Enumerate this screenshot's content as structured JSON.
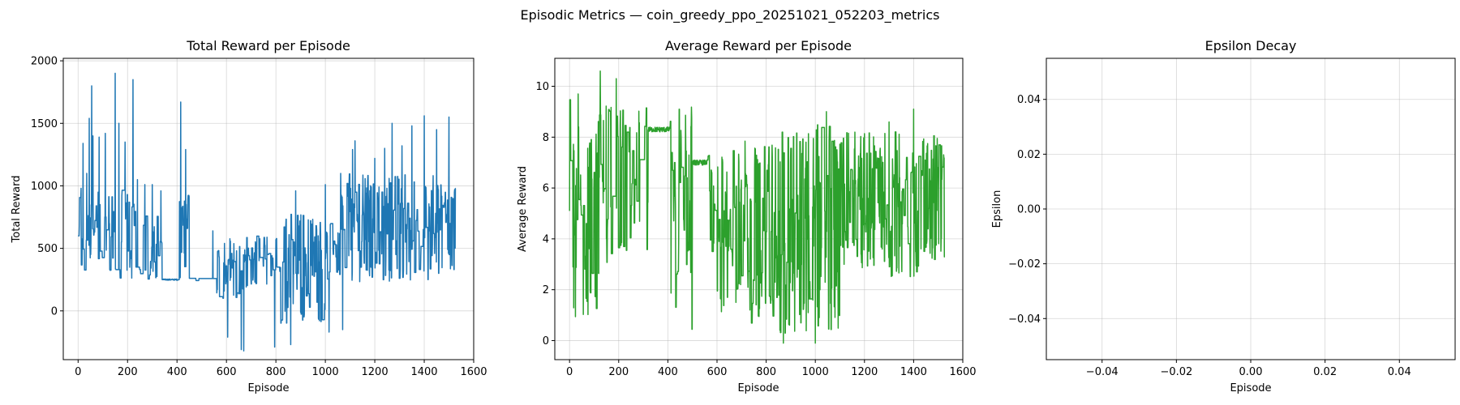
{
  "figure": {
    "suptitle": "Episodic Metrics — coin_greedy_ppo_20251021_052203_metrics"
  },
  "chart_data": [
    {
      "type": "line",
      "title": "Total Reward per Episode",
      "xlabel": "Episode",
      "ylabel": "Total Reward",
      "color": "#1f77b4",
      "xlim": [
        -60,
        1600
      ],
      "ylim": [
        -390,
        2020
      ],
      "grid": true,
      "x_ticks": [
        0,
        200,
        400,
        600,
        800,
        1000,
        1200,
        1400,
        1600
      ],
      "y_ticks": [
        0,
        500,
        1000,
        1500,
        2000
      ],
      "series": [
        {
          "episodes": 1528,
          "segments": [
            {
              "from": 0,
              "to": 30,
              "low": 200,
              "high": 1000,
              "p": 0.3
            },
            {
              "from": 30,
              "to": 230,
              "low": 230,
              "high": 1000,
              "p": 0.3
            },
            {
              "from": 230,
              "to": 340,
              "low": 240,
              "high": 800,
              "p": 0.25
            },
            {
              "from": 340,
              "to": 410,
              "low": 245,
              "high": 255,
              "p": 0.0
            },
            {
              "from": 410,
              "to": 450,
              "low": 210,
              "high": 1000,
              "p": 0.35
            },
            {
              "from": 450,
              "to": 560,
              "low": 235,
              "high": 260,
              "p": 0.05
            },
            {
              "from": 560,
              "to": 700,
              "low": 100,
              "high": 620,
              "p": 0.35
            },
            {
              "from": 700,
              "to": 820,
              "low": 200,
              "high": 600,
              "p": 0.3
            },
            {
              "from": 820,
              "to": 1000,
              "low": -100,
              "high": 800,
              "p": 0.4
            },
            {
              "from": 1000,
              "to": 1060,
              "low": 240,
              "high": 700,
              "p": 0.3
            },
            {
              "from": 1060,
              "to": 1528,
              "low": 230,
              "high": 1100,
              "p": 0.45
            }
          ],
          "spikes": [
            {
              "x": 5,
              "y": 690
            },
            {
              "x": 12,
              "y": 980
            },
            {
              "x": 20,
              "y": 1340
            },
            {
              "x": 35,
              "y": 1100
            },
            {
              "x": 45,
              "y": 1540
            },
            {
              "x": 55,
              "y": 1800
            },
            {
              "x": 60,
              "y": 1400
            },
            {
              "x": 85,
              "y": 1390
            },
            {
              "x": 110,
              "y": 1420
            },
            {
              "x": 150,
              "y": 1900
            },
            {
              "x": 165,
              "y": 1500
            },
            {
              "x": 190,
              "y": 1350
            },
            {
              "x": 222,
              "y": 1850
            },
            {
              "x": 240,
              "y": 1050
            },
            {
              "x": 270,
              "y": 1010
            },
            {
              "x": 300,
              "y": 1010
            },
            {
              "x": 335,
              "y": 960
            },
            {
              "x": 415,
              "y": 1670
            },
            {
              "x": 435,
              "y": 1290
            },
            {
              "x": 545,
              "y": 640
            },
            {
              "x": 605,
              "y": -210
            },
            {
              "x": 660,
              "y": -310
            },
            {
              "x": 670,
              "y": -320
            },
            {
              "x": 795,
              "y": -290
            },
            {
              "x": 860,
              "y": -270
            },
            {
              "x": 880,
              "y": 960
            },
            {
              "x": 1000,
              "y": 1010
            },
            {
              "x": 1015,
              "y": -170
            },
            {
              "x": 1070,
              "y": -150
            },
            {
              "x": 1110,
              "y": 1290
            },
            {
              "x": 1120,
              "y": 1360
            },
            {
              "x": 1200,
              "y": 1220
            },
            {
              "x": 1240,
              "y": 1300
            },
            {
              "x": 1270,
              "y": 1500
            },
            {
              "x": 1310,
              "y": 1320
            },
            {
              "x": 1350,
              "y": 1480
            },
            {
              "x": 1400,
              "y": 1560
            },
            {
              "x": 1450,
              "y": 1450
            },
            {
              "x": 1500,
              "y": 1550
            }
          ]
        }
      ]
    },
    {
      "type": "line",
      "title": "Average Reward per Episode",
      "xlabel": "Episode",
      "ylabel": "Average Reward",
      "color": "#2ca02c",
      "xlim": [
        -60,
        1600
      ],
      "ylim": [
        -0.75,
        11.1
      ],
      "grid": true,
      "x_ticks": [
        0,
        200,
        400,
        600,
        800,
        1000,
        1200,
        1400,
        1600
      ],
      "y_ticks": [
        0,
        2,
        4,
        6,
        8,
        10
      ],
      "series": [
        {
          "episodes": 1528,
          "segments": [
            {
              "from": 0,
              "to": 40,
              "low": 0.5,
              "high": 9.7,
              "p": 0.4
            },
            {
              "from": 40,
              "to": 120,
              "low": 1.0,
              "high": 9.0,
              "p": 0.45
            },
            {
              "from": 120,
              "to": 320,
              "low": 3.0,
              "high": 9.3,
              "p": 0.3
            },
            {
              "from": 320,
              "to": 410,
              "low": 8.2,
              "high": 8.4,
              "p": 0.0
            },
            {
              "from": 410,
              "to": 500,
              "low": 0.1,
              "high": 9.5,
              "p": 0.4
            },
            {
              "from": 500,
              "to": 560,
              "low": 6.9,
              "high": 7.1,
              "p": 0.0
            },
            {
              "from": 560,
              "to": 700,
              "low": 1.0,
              "high": 7.5,
              "p": 0.5
            },
            {
              "from": 700,
              "to": 850,
              "low": 0.5,
              "high": 8.0,
              "p": 0.5
            },
            {
              "from": 850,
              "to": 1100,
              "low": 0.0,
              "high": 8.5,
              "p": 0.5
            },
            {
              "from": 1100,
              "to": 1528,
              "low": 2.5,
              "high": 8.3,
              "p": 0.5
            }
          ],
          "spikes": [
            {
              "x": 125,
              "y": 10.6
            },
            {
              "x": 190,
              "y": 10.3
            },
            {
              "x": 35,
              "y": 9.7
            },
            {
              "x": 1045,
              "y": 9.0
            },
            {
              "x": 1400,
              "y": 9.1
            },
            {
              "x": 1300,
              "y": 8.6
            },
            {
              "x": 870,
              "y": -0.1
            },
            {
              "x": 1000,
              "y": -0.1
            }
          ]
        }
      ]
    },
    {
      "type": "line",
      "title": "Epsilon Decay",
      "xlabel": "Episode",
      "ylabel": "Epsilon",
      "color": "#1f77b4",
      "xlim": [
        -0.055,
        0.055
      ],
      "ylim": [
        -0.055,
        0.055
      ],
      "grid": true,
      "x_ticks": [
        -0.04,
        -0.02,
        0.0,
        0.02,
        0.04
      ],
      "y_ticks": [
        -0.04,
        -0.02,
        0.0,
        0.02,
        0.04
      ],
      "series": []
    }
  ]
}
